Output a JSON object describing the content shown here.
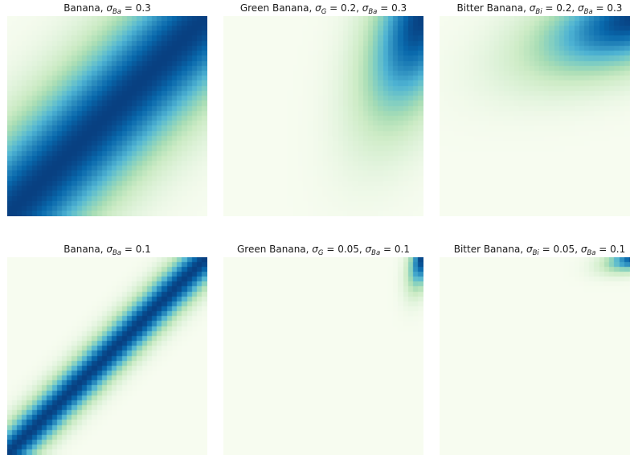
{
  "chart_data": [
    {
      "type": "heatmap",
      "title": {
        "pre": "Banana, ",
        "terms": [
          {
            "sub": "Ba",
            "val": "0.3"
          }
        ]
      },
      "function": "banana",
      "sigma_ba": 0.3,
      "grid": false,
      "colormap": "GnBu"
    },
    {
      "type": "heatmap",
      "title": {
        "pre": "Green Banana, ",
        "terms": [
          {
            "sub": "G",
            "val": "0.2"
          },
          {
            "sub": "Ba",
            "val": "0.3"
          }
        ]
      },
      "function": "green_banana",
      "sigma_g": 0.2,
      "sigma_ba": 0.3,
      "grid": false,
      "colormap": "GnBu"
    },
    {
      "type": "heatmap",
      "title": {
        "pre": "Bitter Banana, ",
        "terms": [
          {
            "sub": "Bi",
            "val": "0.2"
          },
          {
            "sub": "Ba",
            "val": "0.3"
          }
        ]
      },
      "function": "bitter_banana",
      "sigma_bi": 0.2,
      "sigma_ba": 0.3,
      "grid": false,
      "colormap": "GnBu"
    },
    {
      "type": "heatmap",
      "title": {
        "pre": "Banana, ",
        "terms": [
          {
            "sub": "Ba",
            "val": "0.1"
          }
        ]
      },
      "function": "banana",
      "sigma_ba": 0.1,
      "grid": false,
      "colormap": "GnBu"
    },
    {
      "type": "heatmap",
      "title": {
        "pre": "Green Banana, ",
        "terms": [
          {
            "sub": "G",
            "val": "0.05"
          },
          {
            "sub": "Ba",
            "val": "0.1"
          }
        ]
      },
      "function": "green_banana",
      "sigma_g": 0.05,
      "sigma_ba": 0.1,
      "grid": false,
      "colormap": "GnBu"
    },
    {
      "type": "heatmap",
      "title": {
        "pre": "Bitter Banana, ",
        "terms": [
          {
            "sub": "Bi",
            "val": "0.05"
          },
          {
            "sub": "Ba",
            "val": "0.1"
          }
        ]
      },
      "function": "bitter_banana",
      "sigma_bi": 0.05,
      "sigma_ba": 0.1,
      "grid": false,
      "colormap": "GnBu"
    }
  ],
  "colors": {
    "low": "#f7fcf0",
    "mid_low": "#ccebc5",
    "mid": "#7bccc4",
    "mid_high": "#2b8cbe",
    "high": "#084081"
  }
}
